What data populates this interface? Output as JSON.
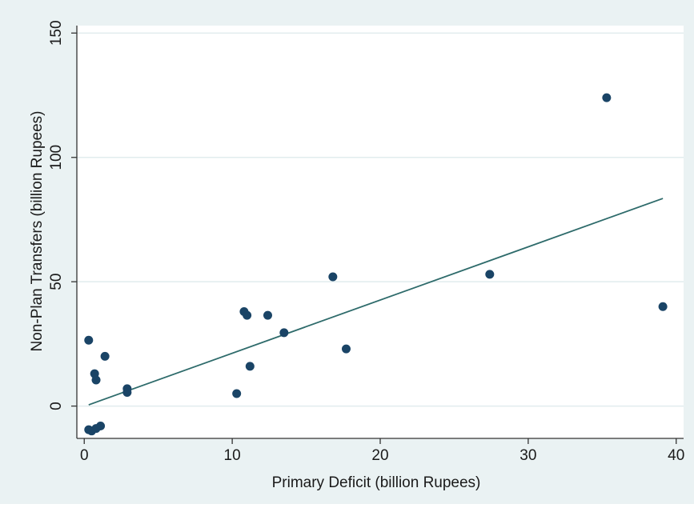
{
  "chart_data": {
    "type": "scatter",
    "xlabel": "Primary Deficit (billion Rupees)",
    "ylabel": "Non-Plan Transfers (billion Rupees)",
    "xlim": [
      -0.5,
      40.5
    ],
    "ylim": [
      -13,
      153
    ],
    "x_ticks": [
      0,
      10,
      20,
      30,
      40
    ],
    "y_ticks": [
      0,
      50,
      100,
      150
    ],
    "grid": true,
    "colors": {
      "panel_background": "#eaf2f3",
      "plot_background": "#ffffff",
      "gridline": "#e1ecee",
      "marker": "#1a4466",
      "fit_line": "#2e6b6b",
      "axis": "#333333"
    },
    "series": [
      {
        "points": [
          {
            "x": 0.3,
            "y": 26.5
          },
          {
            "x": 0.3,
            "y": -9.5
          },
          {
            "x": 0.5,
            "y": -10.0
          },
          {
            "x": 0.7,
            "y": 13.0
          },
          {
            "x": 0.8,
            "y": 10.5
          },
          {
            "x": 0.8,
            "y": -9.0
          },
          {
            "x": 1.1,
            "y": -8.0
          },
          {
            "x": 1.4,
            "y": 20.0
          },
          {
            "x": 2.9,
            "y": 7.0
          },
          {
            "x": 2.9,
            "y": 5.5
          },
          {
            "x": 10.3,
            "y": 5.0
          },
          {
            "x": 10.8,
            "y": 38.0
          },
          {
            "x": 11.0,
            "y": 36.5
          },
          {
            "x": 11.2,
            "y": 16.0
          },
          {
            "x": 12.4,
            "y": 36.5
          },
          {
            "x": 13.5,
            "y": 29.5
          },
          {
            "x": 16.8,
            "y": 52.0
          },
          {
            "x": 17.7,
            "y": 23.0
          },
          {
            "x": 27.4,
            "y": 53.0
          },
          {
            "x": 35.3,
            "y": 124.0
          },
          {
            "x": 39.1,
            "y": 40.0
          }
        ]
      }
    ],
    "fit_line": {
      "x": [
        0.3,
        39.1
      ],
      "y": [
        0.5,
        83.5
      ]
    }
  }
}
